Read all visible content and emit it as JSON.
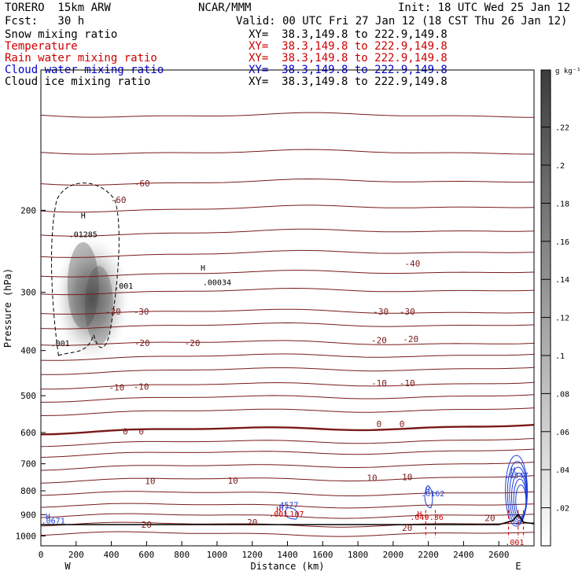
{
  "header": {
    "model": "TORERO  15km ARW",
    "center": "NCAR/MMM",
    "init": "Init: 18 UTC Wed 25 Jan 12",
    "fcst": "Fcst:   30 h",
    "valid": "Valid: 00 UTC Fri 27 Jan 12 (18 CST Thu 26 Jan 12)",
    "fields": [
      {
        "name": "Snow mixing ratio",
        "xy": "XY=  38.3,149.8 to 222.9,149.8",
        "color": "#000000"
      },
      {
        "name": "Temperature",
        "xy": "XY=  38.3,149.8 to 222.9,149.8",
        "color": "#cc0000"
      },
      {
        "name": "Rain water mixing ratio",
        "xy": "XY=  38.3,149.8 to 222.9,149.8",
        "color": "#cc0000"
      },
      {
        "name": "Cloud water mixing ratio",
        "xy": "XY=  38.3,149.8 to 222.9,149.8",
        "color": "#0000cc"
      },
      {
        "name": "Cloud ice mixing ratio",
        "xy": "XY=  38.3,149.8 to 222.9,149.8",
        "color": "#000000"
      }
    ]
  },
  "chart_data": {
    "type": "cross-section",
    "xlabel": "Distance (km)",
    "ylabel": "Pressure (hPa)",
    "xlim": [
      0,
      2800
    ],
    "ylim": [
      1050,
      100
    ],
    "y_log": true,
    "x_ticks": [
      0,
      200,
      400,
      600,
      800,
      1000,
      1200,
      1400,
      1600,
      1800,
      2000,
      2200,
      2400,
      2600
    ],
    "y_ticks": [
      200,
      300,
      400,
      500,
      600,
      700,
      800,
      900,
      1000
    ],
    "x_end_labels": {
      "left": "W",
      "right": "E"
    },
    "colorbar": {
      "unit": "g kg⁻¹",
      "ticks": [
        0.02,
        0.04,
        0.06,
        0.08,
        0.1,
        0.12,
        0.14,
        0.16,
        0.18,
        0.2,
        0.22
      ],
      "tick_labels": [
        ".02",
        ".04",
        ".06",
        ".08",
        ".1",
        ".12",
        ".14",
        ".16",
        ".18",
        ".2",
        ".22"
      ],
      "range": [
        0,
        0.25
      ]
    },
    "temperature_labels": [
      {
        "t": "-60",
        "x": 440,
        "p": 190
      },
      {
        "t": "-60",
        "x": 575,
        "p": 175
      },
      {
        "t": "-40",
        "x": 2110,
        "p": 260
      },
      {
        "t": "-30",
        "x": 410,
        "p": 330
      },
      {
        "t": "-30",
        "x": 570,
        "p": 330
      },
      {
        "t": "-30",
        "x": 1930,
        "p": 330
      },
      {
        "t": "-30",
        "x": 2080,
        "p": 330
      },
      {
        "t": "-20",
        "x": 575,
        "p": 385
      },
      {
        "t": "-20",
        "x": 860,
        "p": 385
      },
      {
        "t": "-20",
        "x": 1920,
        "p": 380
      },
      {
        "t": "-20",
        "x": 2100,
        "p": 378
      },
      {
        "t": "-10",
        "x": 430,
        "p": 480
      },
      {
        "t": "-10",
        "x": 570,
        "p": 478
      },
      {
        "t": "-10",
        "x": 1920,
        "p": 470
      },
      {
        "t": "-10",
        "x": 2080,
        "p": 470
      },
      {
        "t": "0",
        "x": 480,
        "p": 596
      },
      {
        "t": "0",
        "x": 570,
        "p": 596
      },
      {
        "t": "0",
        "x": 1920,
        "p": 575
      },
      {
        "t": "0",
        "x": 2050,
        "p": 575
      },
      {
        "t": "10",
        "x": 620,
        "p": 762
      },
      {
        "t": "10",
        "x": 1090,
        "p": 760
      },
      {
        "t": "10",
        "x": 1880,
        "p": 750
      },
      {
        "t": "10",
        "x": 2080,
        "p": 748
      },
      {
        "t": "20",
        "x": 600,
        "p": 945
      },
      {
        "t": "20",
        "x": 1200,
        "p": 935
      },
      {
        "t": "20",
        "x": 2080,
        "p": 960
      },
      {
        "t": "20",
        "x": 2550,
        "p": 915
      }
    ],
    "isotherms": [
      {
        "p": 125,
        "s": 0
      },
      {
        "p": 150,
        "s": 0
      },
      {
        "p": 175,
        "s": -4
      },
      {
        "p": 200,
        "s": -6
      },
      {
        "p": 225,
        "s": -6
      },
      {
        "p": 250,
        "s": -6
      },
      {
        "p": 275,
        "s": -5
      },
      {
        "p": 300,
        "s": -4
      },
      {
        "p": 330,
        "s": 0
      },
      {
        "p": 355,
        "s": -3
      },
      {
        "p": 385,
        "s": 0
      },
      {
        "p": 415,
        "s": -5
      },
      {
        "p": 445,
        "s": -6
      },
      {
        "p": 478,
        "s": -5
      },
      {
        "p": 510,
        "s": -6
      },
      {
        "p": 545,
        "s": -6
      },
      {
        "p": 598,
        "s": -8,
        "bold": true
      },
      {
        "p": 635,
        "s": -6
      },
      {
        "p": 670,
        "s": -6
      },
      {
        "p": 715,
        "s": -6
      },
      {
        "p": 762,
        "s": -5
      },
      {
        "p": 810,
        "s": 0
      },
      {
        "p": 860,
        "s": 0
      },
      {
        "p": 905,
        "s": 0
      },
      {
        "p": 945,
        "s": 0
      },
      {
        "p": 990,
        "s": 0
      }
    ],
    "snow_maxima": [
      {
        "label": "H",
        "x": 240,
        "p": 205
      },
      {
        "label": ".01285",
        "x": 240,
        "p": 225
      },
      {
        "label": ".001",
        "x": 470,
        "p": 290
      },
      {
        "label": ".001",
        "x": 110,
        "p": 385
      }
    ],
    "snow_contour_labels": [
      ".001"
    ],
    "ice_maxima": [
      {
        "label": "H",
        "x": 920,
        "p": 265
      },
      {
        "label": ".00034",
        "x": 1000,
        "p": 285
      }
    ],
    "cloud_water_maxima": [
      {
        "label": "H",
        "x": 40,
        "p": 905
      },
      {
        "label": ".0671",
        "x": 70,
        "p": 925
      },
      {
        "label": "H",
        "x": 1365,
        "p": 870
      },
      {
        "label": ".4577",
        "x": 1395,
        "p": 856
      },
      {
        "label": "H",
        "x": 2195,
        "p": 795
      },
      {
        "label": ".6162",
        "x": 2225,
        "p": 810
      },
      {
        "label": "H",
        "x": 2680,
        "p": 720
      },
      {
        "label": ".8547",
        "x": 2700,
        "p": 740
      }
    ],
    "rain_maxima": [
      {
        "label": "H",
        "x": 1350,
        "p": 878
      },
      {
        "label": ".001",
        "x": 1350,
        "p": 895
      },
      {
        "label": ".107",
        "x": 1440,
        "p": 895
      },
      {
        "label": "H",
        "x": 2150,
        "p": 896
      },
      {
        "label": ".049",
        "x": 2150,
        "p": 910
      },
      {
        "label": ".36",
        "x": 2245,
        "p": 910
      },
      {
        "label": ".001",
        "x": 2690,
        "p": 1030
      }
    ]
  }
}
